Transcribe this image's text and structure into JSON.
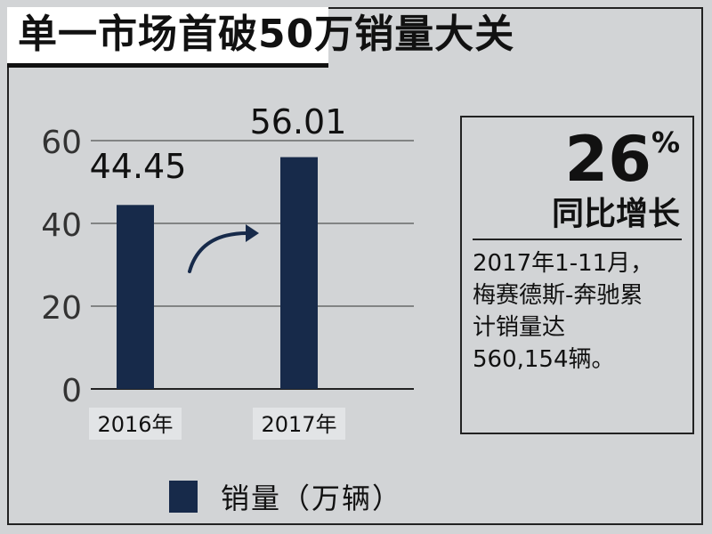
{
  "title": "单一市场首破50万销量大关",
  "chart_data": {
    "type": "bar",
    "categories": [
      "2016年",
      "2017年"
    ],
    "series": [
      {
        "name": "销量（万辆）",
        "values": [
          44.45,
          56.01
        ]
      }
    ],
    "data_labels": [
      "44.45",
      "56.01"
    ],
    "yticks": [
      "0",
      "20",
      "40",
      "60"
    ],
    "ylim": [
      0,
      60
    ],
    "grid": true,
    "legend_position": "bottom",
    "bar_color": "#172a4a"
  },
  "callout": {
    "percent_value": "26",
    "percent_sign": "%",
    "label": "同比增长",
    "note_lines": [
      "2017年1-11月，",
      "梅赛德斯-奔驰累",
      "计销量达",
      "560,154辆。"
    ]
  },
  "legend": {
    "label": "销量（万辆）",
    "color": "#172a4a"
  }
}
